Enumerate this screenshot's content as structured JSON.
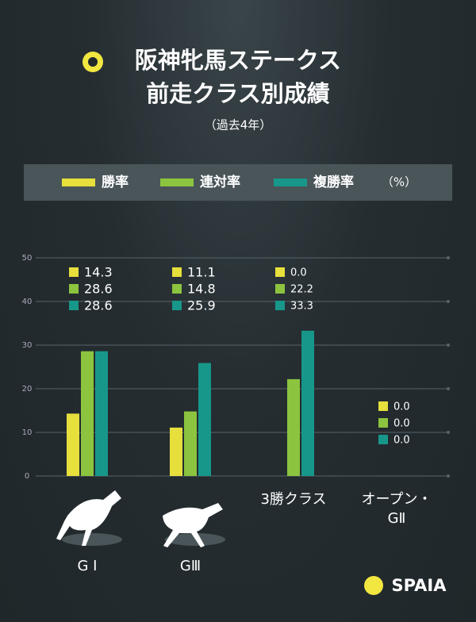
{
  "chart_data": {
    "type": "bar",
    "title": "阪神牝馬ステークス",
    "subtitle": "前走クラス別成績",
    "note": "（過去4年）",
    "unit": "（%）",
    "categories": [
      "G Ⅰ",
      "GⅢ",
      "3勝クラス",
      "オープン・\nGⅡ"
    ],
    "series": [
      {
        "name": "勝率",
        "color": "#e6df3c",
        "values": [
          14.3,
          11.1,
          0.0,
          0.0
        ],
        "value_labels": [
          "14.3",
          "11.1",
          "0.0",
          "0.0"
        ]
      },
      {
        "name": "連対率",
        "color": "#8cc43f",
        "values": [
          28.6,
          14.8,
          22.2,
          0.0
        ],
        "value_labels": [
          "28.6",
          "14.8",
          "22.2",
          "0.0"
        ]
      },
      {
        "name": "複勝率",
        "color": "#17978a",
        "values": [
          28.6,
          25.9,
          33.3,
          0.0
        ],
        "value_labels": [
          "28.6",
          "25.9",
          "33.3",
          "0.0"
        ]
      }
    ],
    "ylim": [
      0,
      50
    ],
    "yticks": [
      0,
      10,
      20,
      30,
      40,
      50
    ],
    "grid": true,
    "brand": "SPAIA"
  }
}
